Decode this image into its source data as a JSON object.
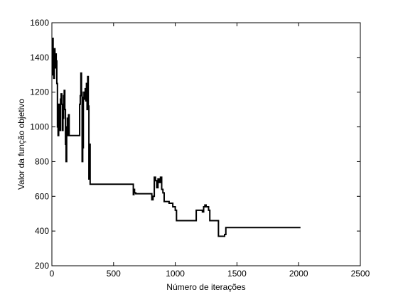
{
  "chart_data": {
    "type": "line",
    "title": "",
    "xlabel": "Número de iterações",
    "ylabel": "Valor da função objetivo",
    "xlim": [
      0,
      2500
    ],
    "ylim": [
      200,
      1600
    ],
    "xticks": [
      0,
      500,
      1000,
      1500,
      2000,
      2500
    ],
    "yticks": [
      200,
      400,
      600,
      800,
      1000,
      1200,
      1400,
      1600
    ],
    "grid": false,
    "legend": "none",
    "line_color": "#000000",
    "series": [
      {
        "step": true,
        "x": [
          0,
          5,
          10,
          15,
          20,
          25,
          30,
          35,
          40,
          45,
          50,
          55,
          60,
          65,
          70,
          75,
          80,
          85,
          90,
          95,
          100,
          105,
          110,
          115,
          120,
          125,
          130,
          135,
          140,
          150,
          160,
          170,
          180,
          190,
          200,
          210,
          220,
          225,
          230,
          235,
          240,
          245,
          250,
          255,
          260,
          265,
          270,
          275,
          280,
          285,
          290,
          295,
          300,
          305,
          310,
          315,
          320,
          330,
          400,
          500,
          600,
          650,
          660,
          665,
          670,
          680,
          700,
          750,
          800,
          810,
          820,
          830,
          840,
          850,
          860,
          870,
          880,
          890,
          900,
          910,
          920,
          930,
          950,
          980,
          1000,
          1010,
          1020,
          1050,
          1100,
          1150,
          1170,
          1200,
          1210,
          1220,
          1230,
          1240,
          1250,
          1260,
          1270,
          1280,
          1300,
          1350,
          1360,
          1380,
          1400,
          1410,
          1420,
          1430,
          1500,
          1600,
          1700,
          1800,
          1900,
          2000,
          2015
        ],
        "y": [
          1300,
          1510,
          1350,
          1280,
          1450,
          1340,
          1420,
          1380,
          1250,
          1000,
          950,
          1130,
          1050,
          980,
          1160,
          1190,
          1130,
          980,
          1050,
          1180,
          1210,
          1100,
          900,
          800,
          1000,
          1050,
          950,
          1070,
          950,
          950,
          950,
          950,
          950,
          950,
          950,
          950,
          950,
          1130,
          1180,
          1310,
          1200,
          800,
          880,
          1170,
          1200,
          1160,
          1220,
          1150,
          1250,
          1100,
          1290,
          1120,
          700,
          900,
          670,
          670,
          670,
          670,
          670,
          670,
          670,
          670,
          610,
          640,
          620,
          615,
          615,
          615,
          615,
          580,
          600,
          710,
          690,
          650,
          700,
          680,
          710,
          640,
          620,
          570,
          570,
          570,
          560,
          540,
          520,
          460,
          460,
          460,
          460,
          460,
          520,
          520,
          520,
          510,
          540,
          550,
          540,
          540,
          520,
          460,
          460,
          370,
          370,
          370,
          380,
          420,
          420,
          420,
          420,
          420,
          420,
          420,
          420,
          420,
          420
        ]
      }
    ]
  }
}
